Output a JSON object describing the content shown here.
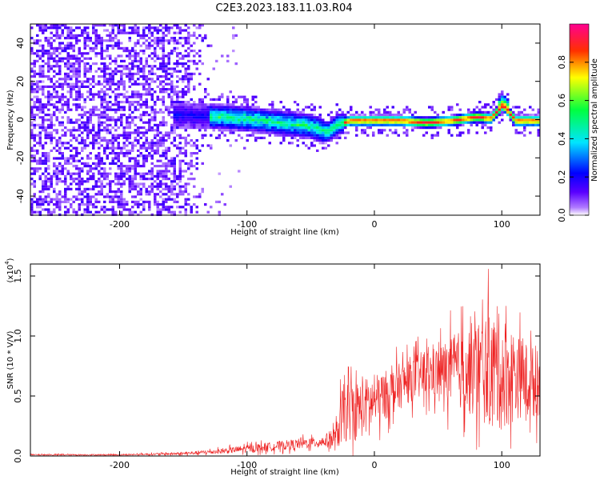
{
  "title": "C2E3.2023.183.11.03.R04",
  "chart_data": [
    {
      "type": "heatmap",
      "xlabel": "Height of straight line (km)",
      "ylabel": "Frequency (Hz)",
      "xlim": [
        -270,
        130
      ],
      "ylim": [
        -50,
        50
      ],
      "x_ticks": [
        -200,
        -100,
        0,
        100
      ],
      "y_ticks": [
        -40,
        -20,
        0,
        20,
        40
      ],
      "colorbar": {
        "label": "Normalized spectral amplitude",
        "range": [
          0,
          1
        ],
        "ticks": [
          "0.0",
          "0.2",
          "0.4",
          "0.6",
          "0.8"
        ],
        "colors": [
          "#ffffff",
          "#7a00ff",
          "#0000ff",
          "#00ffff",
          "#00ff00",
          "#ffff00",
          "#ff0000",
          "#ff00aa"
        ]
      },
      "features": {
        "noise_region_x": [
          -270,
          -130
        ],
        "signal_ridge": [
          [
            -150,
            3
          ],
          [
            -125,
            2
          ],
          [
            -100,
            1
          ],
          [
            -75,
            -1
          ],
          [
            -50,
            -3
          ],
          [
            -38,
            -6
          ],
          [
            -30,
            -2
          ],
          [
            -20,
            0
          ],
          [
            0,
            0
          ],
          [
            20,
            0
          ],
          [
            40,
            -1
          ],
          [
            60,
            0
          ],
          [
            80,
            2
          ],
          [
            90,
            1
          ],
          [
            100,
            8
          ],
          [
            110,
            0
          ],
          [
            130,
            0
          ]
        ]
      }
    },
    {
      "type": "line",
      "xlabel": "Height of straight line (km)",
      "ylabel": "SNR (10 * V/V)",
      "yscale_label": "(x10",
      "yscale_exp": "4",
      "ylabel_full": "SNR (10 * V/V)",
      "xlim": [
        -270,
        130
      ],
      "ylim": [
        0,
        1.6
      ],
      "x_ticks": [
        -200,
        -100,
        0,
        100
      ],
      "y_ticks": [
        0.0,
        0.5,
        1.0,
        1.5
      ],
      "y_tick_labels": [
        "0.0",
        "0.5",
        "1.0",
        "1.5"
      ],
      "series": [
        {
          "color": "#ee2222",
          "envelope": [
            {
              "x": -270,
              "mean": 0.01,
              "max": 0.02
            },
            {
              "x": -200,
              "mean": 0.01,
              "max": 0.02
            },
            {
              "x": -150,
              "mean": 0.02,
              "max": 0.04
            },
            {
              "x": -120,
              "mean": 0.04,
              "max": 0.08
            },
            {
              "x": -100,
              "mean": 0.06,
              "max": 0.12
            },
            {
              "x": -80,
              "mean": 0.08,
              "max": 0.15
            },
            {
              "x": -60,
              "mean": 0.1,
              "max": 0.18
            },
            {
              "x": -40,
              "mean": 0.12,
              "max": 0.2
            },
            {
              "x": -30,
              "mean": 0.15,
              "max": 0.35
            },
            {
              "x": -25,
              "mean": 0.35,
              "max": 0.8
            },
            {
              "x": -10,
              "mean": 0.4,
              "max": 0.85
            },
            {
              "x": 0,
              "mean": 0.45,
              "max": 0.85
            },
            {
              "x": 15,
              "mean": 0.55,
              "max": 0.9
            },
            {
              "x": 30,
              "mean": 0.65,
              "max": 1.0
            },
            {
              "x": 50,
              "mean": 0.7,
              "max": 1.1
            },
            {
              "x": 70,
              "mean": 0.72,
              "max": 1.35
            },
            {
              "x": 85,
              "mean": 0.72,
              "max": 1.55
            },
            {
              "x": 100,
              "mean": 0.7,
              "max": 1.6
            },
            {
              "x": 115,
              "mean": 0.65,
              "max": 1.25
            },
            {
              "x": 130,
              "mean": 0.6,
              "max": 1.1
            }
          ]
        }
      ]
    }
  ]
}
